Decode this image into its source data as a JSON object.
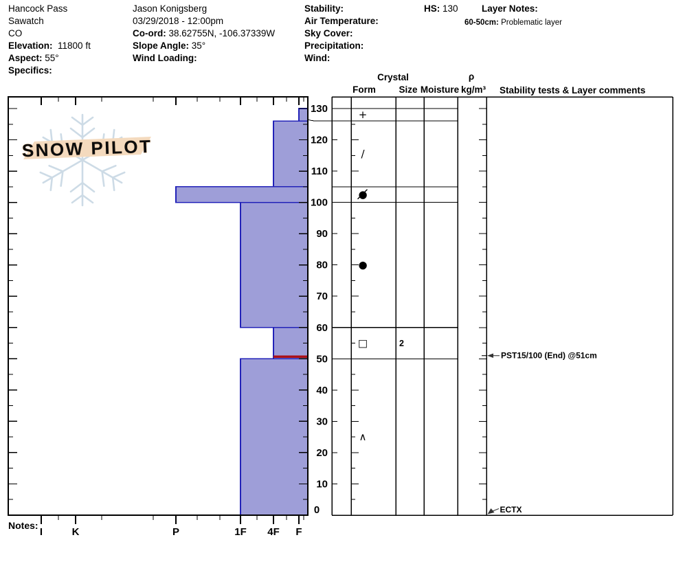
{
  "header": {
    "location": {
      "name": "Hancock Pass",
      "range": "Sawatch",
      "state": "CO",
      "elevation_label": "Elevation:",
      "elevation_value": "11800 ft",
      "aspect_label": "Aspect:",
      "aspect_value": "55°",
      "specifics_label": "Specifics:"
    },
    "observer": {
      "name": "Jason Konigsberg",
      "datetime": "03/29/2018 - 12:00pm",
      "coord_label": "Co-ord:",
      "coord_value": "38.62755N, -106.37339W",
      "slope_angle_label": "Slope Angle:",
      "slope_angle_value": "35°",
      "wind_loading_label": "Wind Loading:"
    },
    "conditions": {
      "stability_label": "Stability:",
      "air_temperature_label": "Air Temperature:",
      "sky_cover_label": "Sky Cover:",
      "precipitation_label": "Precipitation:",
      "wind_label": "Wind:"
    },
    "hs_label": "HS:",
    "hs_value": "130",
    "layer_notes_label": "Layer Notes:",
    "layer_note_range": "60-50cm:",
    "layer_note_text": "Problematic layer"
  },
  "logo": {
    "text": "SNOW PILOT"
  },
  "profile_table": {
    "headers": {
      "crystal": "Crystal",
      "form": "Form",
      "size": "Size",
      "moisture": "Moisture",
      "rho": "ρ",
      "rho_units": "kg/m³",
      "stability": "Stability tests & Layer comments"
    }
  },
  "notes_label": "Notes:",
  "chart_data": {
    "type": "bar",
    "variant": "snow-hardness-depth-profile",
    "title": "Snow profile: hand hardness vs depth",
    "depth_axis": {
      "unit": "cm",
      "min": 0,
      "max": 130,
      "tick_step": 10,
      "minor_tick_step": 5,
      "labels": [
        "0",
        "10",
        "20",
        "30",
        "40",
        "50",
        "60",
        "70",
        "80",
        "90",
        "100",
        "110",
        "120",
        "130"
      ]
    },
    "hardness_axis": {
      "categories": [
        "I",
        "K",
        "P",
        "1F",
        "4F",
        "F"
      ],
      "note": "hand hardness, hardest (I) at left to softest (F) at right; bars extend left from depth axis"
    },
    "total_depth_hs_cm": 130,
    "layers": [
      {
        "top_cm": 130,
        "bottom_cm": 126,
        "hardness": "F",
        "grain_form_symbol": "+",
        "grain_form": "precipitation particles"
      },
      {
        "top_cm": 126,
        "bottom_cm": 105,
        "hardness": "4F",
        "grain_form_symbol": "/",
        "grain_form": "decomposing fragments"
      },
      {
        "top_cm": 105,
        "bottom_cm": 100,
        "hardness": "P",
        "grain_form_symbol": "●",
        "grain_form_overlay": "/",
        "grain_form": "mixed rounded grains"
      },
      {
        "top_cm": 100,
        "bottom_cm": 60,
        "hardness": "1F",
        "grain_form_symbol": "●",
        "grain_form": "rounded grains"
      },
      {
        "top_cm": 60,
        "bottom_cm": 50,
        "hardness": "4F",
        "grain_form_symbol": "□",
        "grain_form": "faceted crystals",
        "grain_size_mm": "2",
        "problematic": true
      },
      {
        "top_cm": 50,
        "bottom_cm": 0,
        "hardness": "1F",
        "grain_form_symbol": "∧",
        "grain_form": "depth hoar"
      }
    ],
    "weak_layer_marker": {
      "depth_top_cm": 51,
      "depth_bottom_cm": 50.3,
      "hardness_extent": "4F",
      "color": "#aa1018"
    },
    "stability_tests": [
      {
        "text": "PST15/100 (End) @51cm",
        "depth_cm": 51,
        "arrow": "horizontal"
      },
      {
        "text": "ECTX",
        "depth_cm": 0,
        "arrow": "diagonal"
      }
    ],
    "colors": {
      "bar_fill": "#9e9ed8",
      "bar_stroke": "#2222b8"
    }
  }
}
